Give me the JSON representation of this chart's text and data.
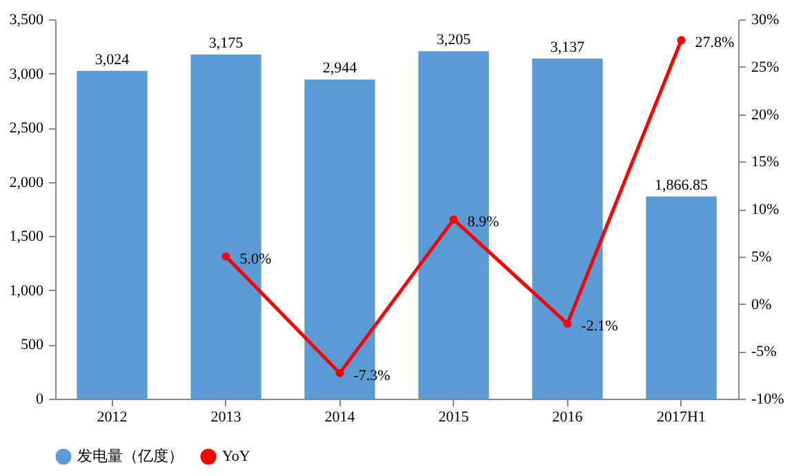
{
  "chart_data": {
    "type": "bar",
    "categories": [
      "2012",
      "2013",
      "2014",
      "2015",
      "2016",
      "2017H1"
    ],
    "series": [
      {
        "name": "发电量（亿度）",
        "color": "#5b9bd5",
        "values": [
          3024,
          3175,
          2944,
          3205,
          3137,
          1866.85
        ],
        "value_labels": [
          "3,024",
          "3,175",
          "2,944",
          "3,205",
          "3,137",
          "1,866.85"
        ]
      },
      {
        "name": "YoY",
        "type": "line",
        "axis": "y2",
        "color": "#ff0000",
        "marker": "circle",
        "values": [
          null,
          5.0,
          -7.3,
          8.9,
          -2.1,
          27.8
        ],
        "value_labels": [
          null,
          "5.0%",
          "-7.3%",
          "8.9%",
          "-2.1%",
          "27.8%"
        ]
      }
    ],
    "ylim": [
      0,
      3500
    ],
    "yticks": [
      0,
      {
        "value": 500,
        "label": "500"
      },
      {
        "value": 1000,
        "label": "1,000"
      },
      {
        "value": 1500,
        "label": "1,500"
      },
      {
        "value": 2000,
        "label": "2,000"
      },
      {
        "value": 2500,
        "label": "2,500"
      },
      {
        "value": 3000,
        "label": "3,000"
      },
      {
        "value": 3500,
        "label": "3,500"
      }
    ],
    "y2lim": [
      -10,
      30
    ],
    "y2ticks": [
      {
        "value": -10,
        "label": "-10%"
      },
      {
        "value": -5,
        "label": "-5%"
      },
      {
        "value": 0,
        "label": "0%"
      },
      {
        "value": 5,
        "label": "5%"
      },
      {
        "value": 10,
        "label": "10%"
      },
      {
        "value": 15,
        "label": "15%"
      },
      {
        "value": 20,
        "label": "20%"
      },
      {
        "value": 25,
        "label": "25%"
      },
      {
        "value": 30,
        "label": "30%"
      }
    ],
    "legend": "bottom"
  }
}
